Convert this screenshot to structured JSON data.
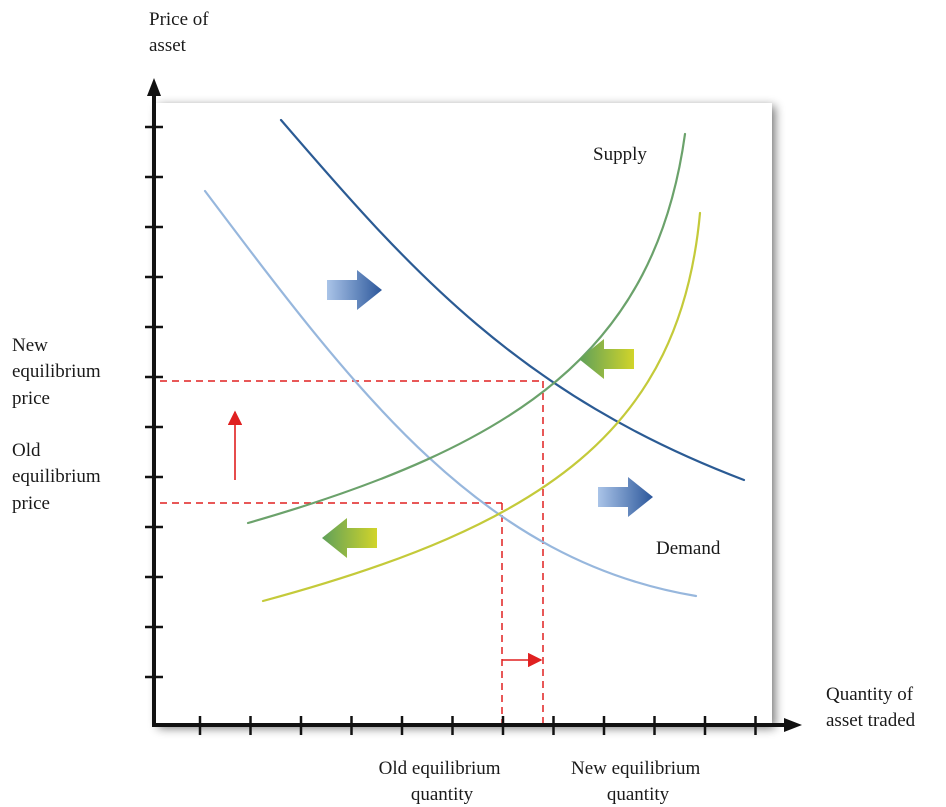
{
  "axes": {
    "y_label": [
      "Price of",
      "asset"
    ],
    "x_label": [
      "Quantity of",
      "asset traded"
    ]
  },
  "curves": {
    "supply_label": "Supply",
    "demand_label": "Demand"
  },
  "prices": {
    "new_label": [
      "New",
      "equilibrium",
      "price"
    ],
    "old_label": [
      "Old",
      "equilibrium",
      "price"
    ]
  },
  "quantities": {
    "old_label": [
      "Old equilibrium",
      "quantity"
    ],
    "new_label": [
      "New equilibrium",
      "quantity"
    ]
  },
  "colors": {
    "axis": "#111111",
    "demand_new": "#2b5b94",
    "demand_old": "#97b7dd",
    "supply_new": "#6ba26b",
    "supply_old": "#c4ca3a",
    "guide_lines": "#e02020",
    "blue_arrow_light": "#aac4e8",
    "blue_arrow_dark": "#2c579b",
    "green_arrow_light": "#d1d42a",
    "green_arrow_dark": "#5fa05a"
  },
  "icons": {
    "demand_shift_arrows": "blue-right-arrow",
    "supply_shift_arrows": "green-left-arrow",
    "price_change_arrow": "red-up-arrow",
    "quantity_change_arrow": "red-right-arrow"
  }
}
